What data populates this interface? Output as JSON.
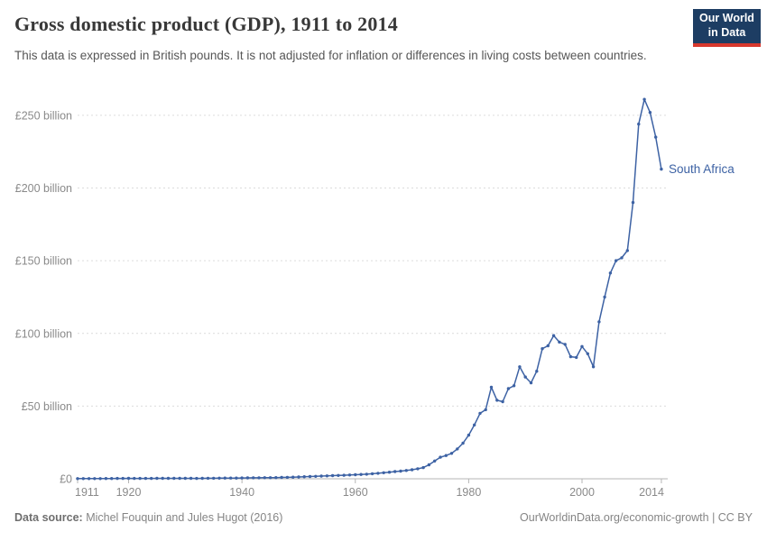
{
  "header": {
    "title": "Gross domestic product (GDP), 1911 to 2014",
    "subtitle": "This data is expressed in British pounds. It is not adjusted for inflation or differences in living costs between countries.",
    "logo": {
      "line1": "Our World",
      "line2": "in Data"
    }
  },
  "footer": {
    "source_label": "Data source:",
    "source_text": " Michel Fouquin and Jules Hugot (2016)",
    "credit": "OurWorldinData.org/economic-growth | CC BY"
  },
  "colors": {
    "line": "#3d62a4",
    "entity_label": "#3d62a4",
    "grid": "#dcdcdc",
    "axis": "#b5b5b5",
    "tick_text": "#8a8a8a",
    "logo_bg": "#1d3d63",
    "logo_red": "#d7382d"
  },
  "chart_data": {
    "type": "line",
    "title": "Gross domestic product (GDP), 1911 to 2014",
    "unit": "British pounds (billions)",
    "entity_label": "South Africa",
    "legend_position": "end-of-line",
    "grid": "dashed-horizontal",
    "x_years": {
      "start": 1911,
      "end": 2014,
      "step": 1
    },
    "xlim": [
      1911,
      2014
    ],
    "ylim": [
      0,
      261
    ],
    "x_ticks": [
      {
        "year": 1911,
        "label": "1911"
      },
      {
        "year": 1920,
        "label": "1920"
      },
      {
        "year": 1940,
        "label": "1940"
      },
      {
        "year": 1960,
        "label": "1960"
      },
      {
        "year": 1980,
        "label": "1980"
      },
      {
        "year": 2000,
        "label": "2000"
      },
      {
        "year": 2014,
        "label": "2014"
      }
    ],
    "y_ticks": [
      {
        "value": 0,
        "label": "£0"
      },
      {
        "value": 50,
        "label": "£50 billion"
      },
      {
        "value": 100,
        "label": "£100 billion"
      },
      {
        "value": 150,
        "label": "£150 billion"
      },
      {
        "value": 200,
        "label": "£200 billion"
      },
      {
        "value": 250,
        "label": "£250 billion"
      }
    ],
    "series": [
      {
        "name": "South Africa",
        "values": [
          0.13,
          0.14,
          0.15,
          0.14,
          0.15,
          0.17,
          0.19,
          0.22,
          0.25,
          0.28,
          0.25,
          0.24,
          0.25,
          0.27,
          0.28,
          0.29,
          0.3,
          0.31,
          0.32,
          0.3,
          0.28,
          0.27,
          0.33,
          0.36,
          0.4,
          0.44,
          0.47,
          0.48,
          0.51,
          0.55,
          0.6,
          0.66,
          0.71,
          0.74,
          0.77,
          0.82,
          0.9,
          1.02,
          1.1,
          1.25,
          1.45,
          1.55,
          1.7,
          1.85,
          2.0,
          2.15,
          2.3,
          2.42,
          2.58,
          2.78,
          2.95,
          3.15,
          3.45,
          3.8,
          4.15,
          4.5,
          4.95,
          5.3,
          5.7,
          6.2,
          6.9,
          7.7,
          9.6,
          12.2,
          14.8,
          16.0,
          17.5,
          20.5,
          24.5,
          30.0,
          37.0,
          45.0,
          47.5,
          63.0,
          54.0,
          53.0,
          62.0,
          64.0,
          77.0,
          70.0,
          66.0,
          74.0,
          89.5,
          91.5,
          98.5,
          94.0,
          92.5,
          84.0,
          83.5,
          91.0,
          86.0,
          77.0,
          108.0,
          125.0,
          141.5,
          150.0,
          152.0,
          157.0,
          190.0,
          244.0,
          261.0,
          252.0,
          235.0,
          213.0
        ]
      }
    ]
  }
}
